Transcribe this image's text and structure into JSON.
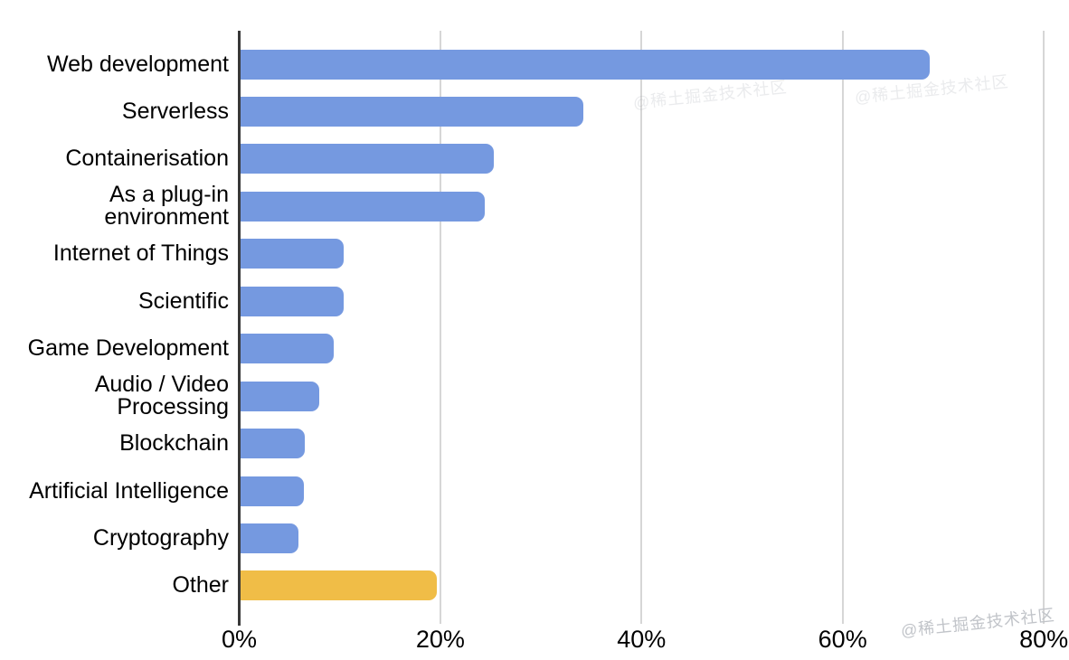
{
  "chart_data": {
    "type": "bar",
    "orientation": "horizontal",
    "title": "",
    "xlabel": "",
    "ylabel": "",
    "categories": [
      "Web development",
      "Serverless",
      "Containerisation",
      "As a plug-in\nenvironment",
      "Internet of Things",
      "Scientific",
      "Game Development",
      "Audio / Video\nProcessing",
      "Blockchain",
      "Artificial Intelligence",
      "Cryptography",
      "Other"
    ],
    "values": [
      68.7,
      34.3,
      25.4,
      24.5,
      10.4,
      10.4,
      9.4,
      8.0,
      6.6,
      6.5,
      5.9,
      19.7
    ],
    "unit": "%",
    "xlim": [
      0,
      80
    ],
    "x_ticks": [
      "0%",
      "20%",
      "40%",
      "60%",
      "80%"
    ],
    "x_tick_values": [
      0,
      20,
      40,
      60,
      80
    ],
    "grid": true,
    "legend": false,
    "colors": [
      "#7599E0",
      "#7599E0",
      "#7599E0",
      "#7599E0",
      "#7599E0",
      "#7599E0",
      "#7599E0",
      "#7599E0",
      "#7599E0",
      "#7599E0",
      "#7599E0",
      "#F0BD47"
    ],
    "accent_blue": "#7599E0",
    "accent_orange": "#F0BD47",
    "gridline_color": "#d6d6d6",
    "axis_color": "#383838"
  },
  "watermark": {
    "text": "@稀土掘金技术社区"
  }
}
